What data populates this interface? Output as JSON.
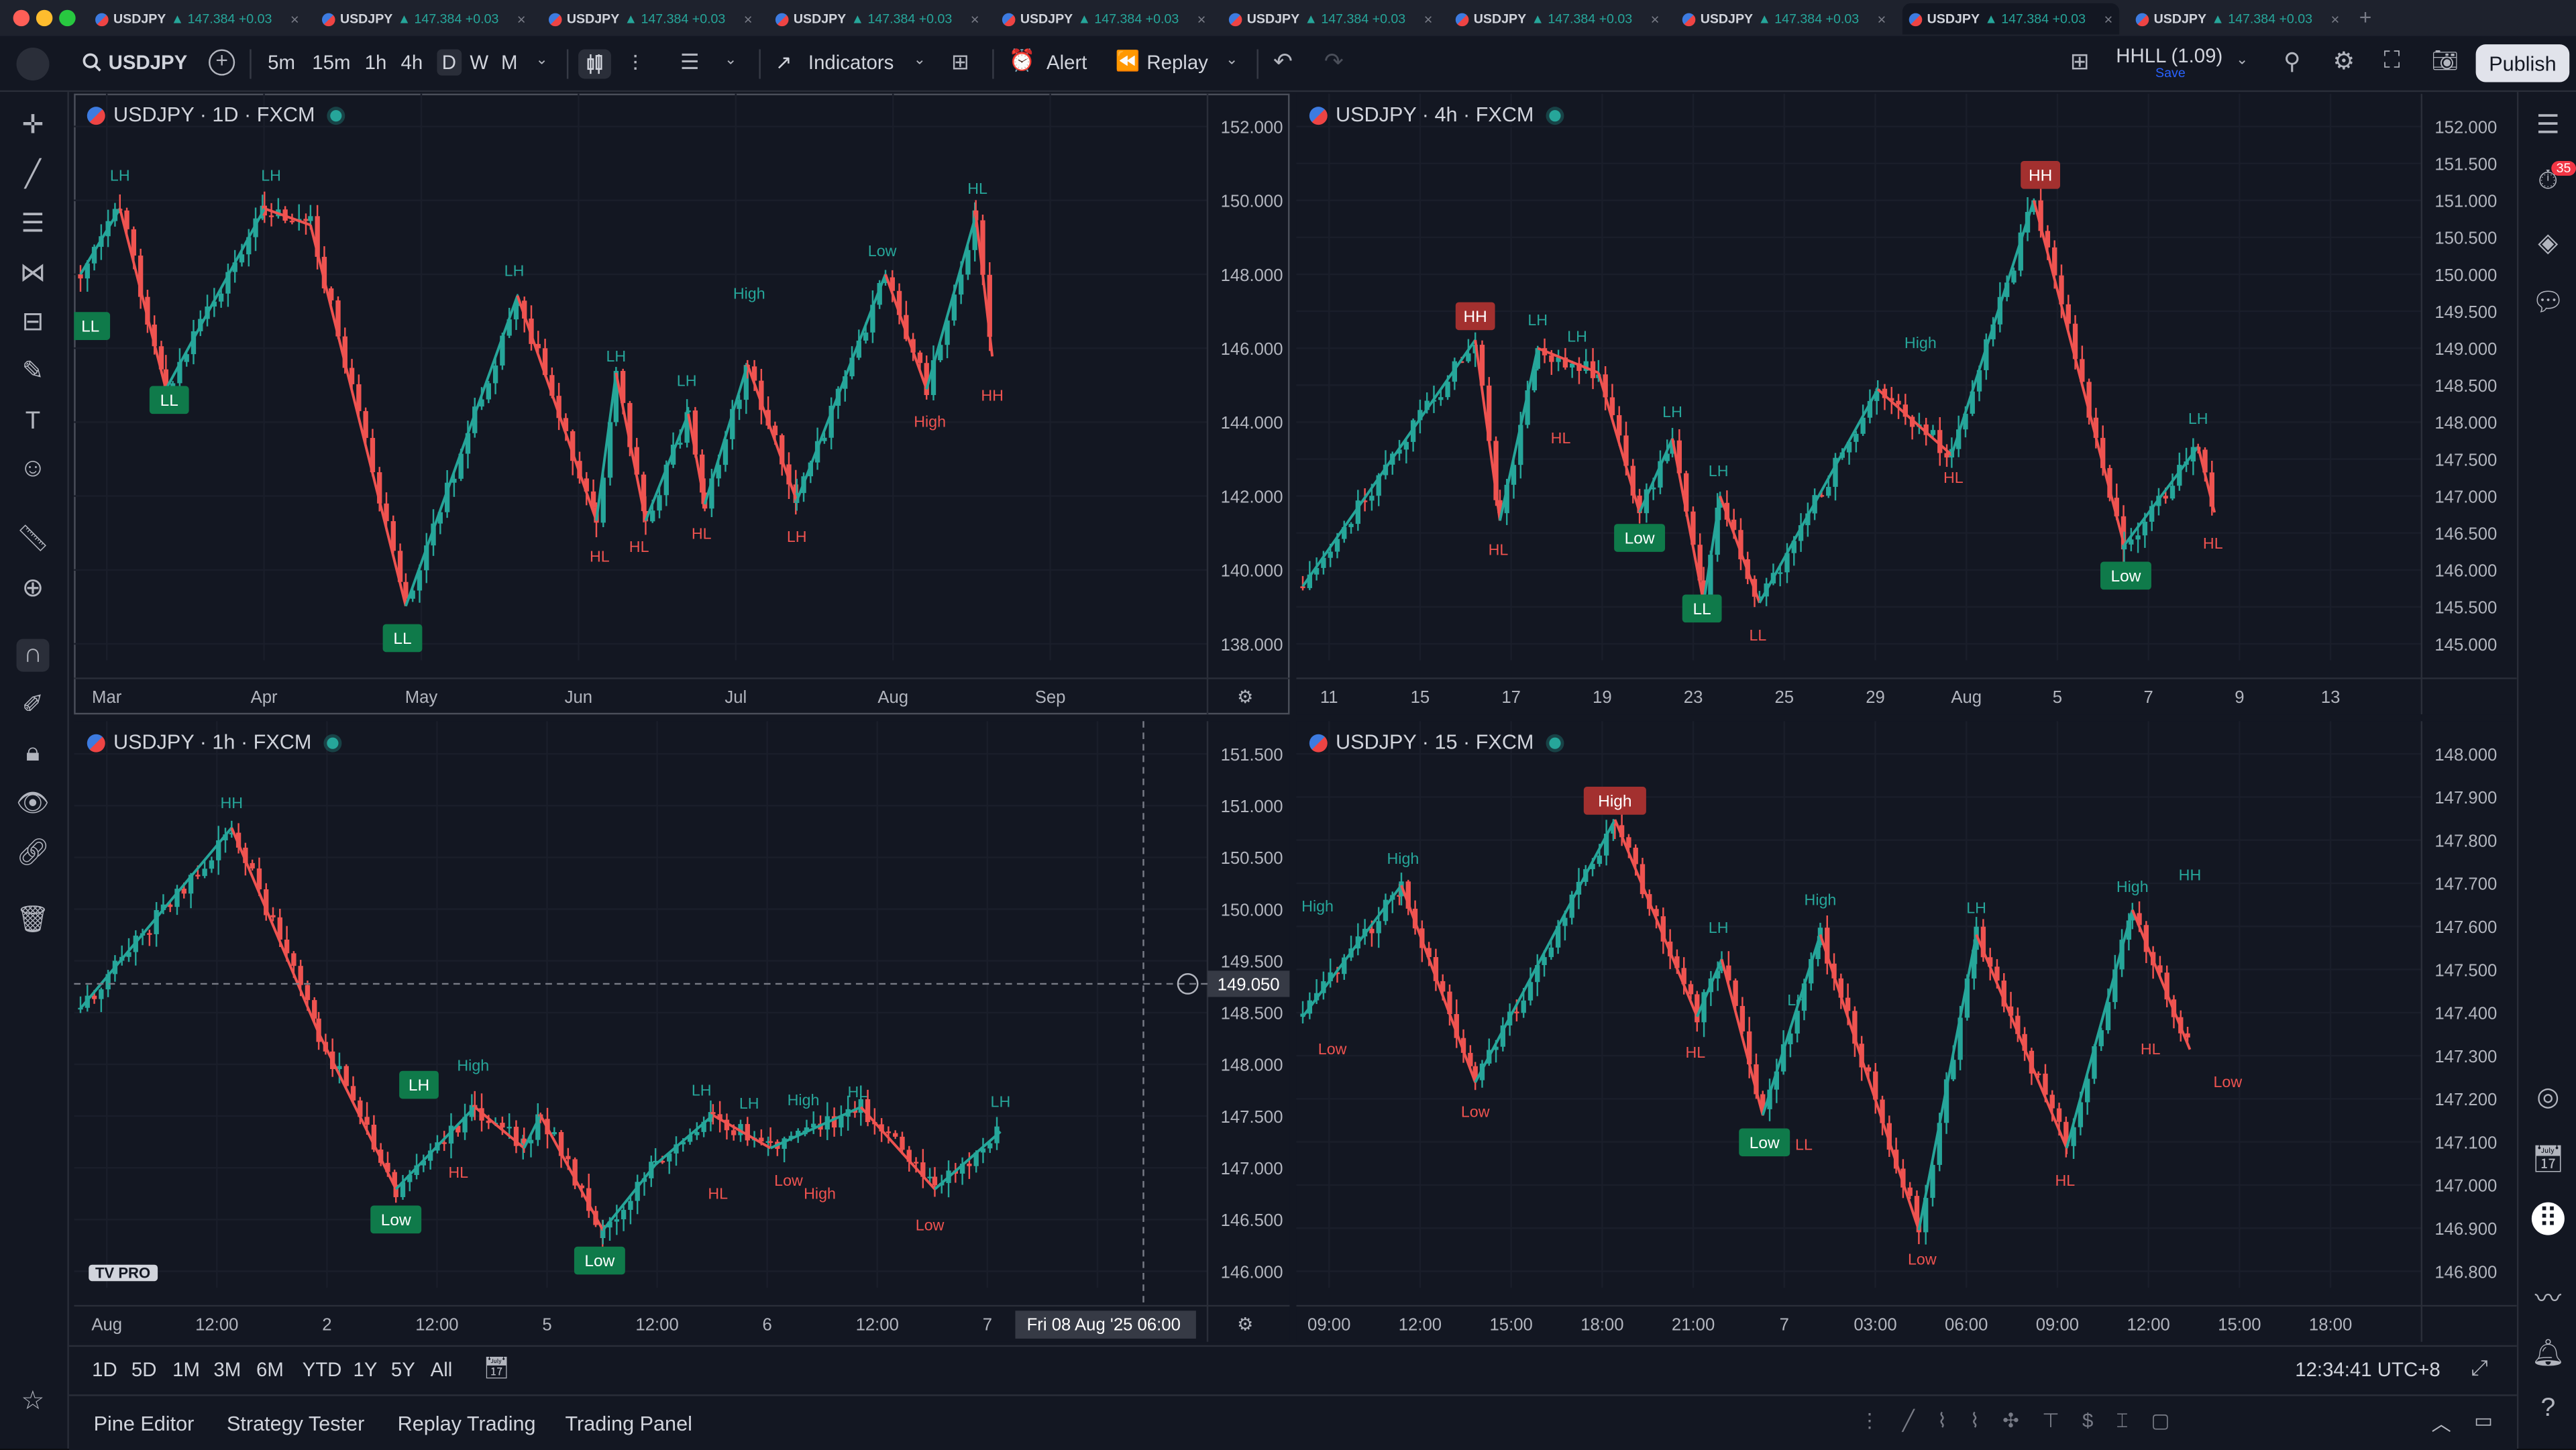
{
  "tabs": [
    {
      "symbol": "USDJPY",
      "change": "▲ 147.384 +0.03"
    },
    {
      "symbol": "USDJPY",
      "change": "▲ 147.384 +0.03"
    },
    {
      "symbol": "USDJPY",
      "change": "▲ 147.384 +0.03"
    },
    {
      "symbol": "USDJPY",
      "change": "▲ 147.384 +0.03"
    },
    {
      "symbol": "USDJPY",
      "change": "▲ 147.384 +0.03"
    },
    {
      "symbol": "USDJPY",
      "change": "▲ 147.384 +0.03"
    },
    {
      "symbol": "USDJPY",
      "change": "▲ 147.384 +0.03"
    },
    {
      "symbol": "USDJPY",
      "change": "▲ 147.384 +0.03"
    },
    {
      "symbol": "USDJPY",
      "change": "▲ 147.384 +0.03"
    },
    {
      "symbol": "USDJPY",
      "change": "▲ 147.384 +0.03"
    }
  ],
  "toolbar": {
    "symbol": "USDJPY",
    "intervals": [
      "5m",
      "15m",
      "1h",
      "4h",
      "D",
      "W",
      "M"
    ],
    "indicators": "Indicators",
    "alert": "Alert",
    "replay": "Replay",
    "layout_name": "HHLL (1.09)",
    "layout_sub": "Save",
    "publish": "Publish"
  },
  "colors": {
    "up": "#26a69a",
    "down": "#ef5350",
    "label_up": "#26a69a",
    "label_down": "#ef5350",
    "bg": "#131722",
    "grid": "#1c2030"
  },
  "panes": [
    {
      "title": "USDJPY · 1D · FXCM",
      "yticks": [
        "152.000",
        "150.000",
        "148.000",
        "146.000",
        "144.000",
        "142.000",
        "140.000",
        "138.000"
      ],
      "xticks": [
        "Mar",
        "Apr",
        "May",
        "Jun",
        "Jul",
        "Aug",
        "Sep"
      ],
      "labels": [
        "LH",
        "LH",
        "LL",
        "LL",
        "LL",
        "LH",
        "LH",
        "LH",
        "HL",
        "HL",
        "HL",
        "LH",
        "High",
        "Low",
        "High",
        "HL",
        "HH",
        "HL"
      ]
    },
    {
      "title": "USDJPY · 4h · FXCM",
      "yticks": [
        "152.000",
        "151.500",
        "151.000",
        "150.500",
        "150.000",
        "149.500",
        "149.000",
        "148.500",
        "148.000",
        "147.500",
        "147.000",
        "146.500",
        "146.000",
        "145.500",
        "145.000"
      ],
      "xticks": [
        "11",
        "15",
        "17",
        "19",
        "23",
        "25",
        "29",
        "Aug",
        "5",
        "7",
        "9",
        "13"
      ],
      "labels": [
        "HH",
        "LH",
        "LH",
        "HL",
        "HL",
        "LH",
        "Low",
        "LH",
        "LL",
        "LL",
        "High",
        "HL",
        "HH",
        "LH",
        "Low",
        "HL"
      ]
    },
    {
      "title": "USDJPY · 1h · FXCM",
      "yticks": [
        "151.500",
        "151.000",
        "150.500",
        "150.000",
        "149.500",
        "148.500",
        "148.000",
        "147.500",
        "147.000",
        "146.500",
        "146.000"
      ],
      "crosshair_price": "149.050",
      "crosshair_time": "Fri 08 Aug '25   06:00",
      "xticks": [
        "Aug",
        "12:00",
        "2",
        "12:00",
        "5",
        "12:00",
        "6",
        "12:00",
        "7",
        "12:0"
      ],
      "labels": [
        "HH",
        "LH",
        "High",
        "Low",
        "HL",
        "Low",
        "LH",
        "LH",
        "High",
        "HL",
        "HL",
        "Low",
        "High",
        "Low",
        "LH"
      ]
    },
    {
      "title": "USDJPY · 15 · FXCM",
      "yticks": [
        "148.000",
        "147.900",
        "147.800",
        "147.700",
        "147.600",
        "147.500",
        "147.400",
        "147.300",
        "147.200",
        "147.100",
        "147.000",
        "146.900",
        "146.800"
      ],
      "xticks": [
        "09:00",
        "12:00",
        "15:00",
        "18:00",
        "21:00",
        "7",
        "03:00",
        "06:00",
        "09:00",
        "12:00",
        "15:00",
        "18:00"
      ],
      "labels": [
        "High",
        "High",
        "Low",
        "Low",
        "High",
        "LH",
        "HL",
        "LH",
        "High",
        "Low",
        "LL",
        "Low",
        "LH",
        "HL",
        "High",
        "HH",
        "HL",
        "Low"
      ]
    }
  ],
  "rangebar": {
    "ranges": [
      "1D",
      "5D",
      "1M",
      "3M",
      "6M",
      "YTD",
      "1Y",
      "5Y",
      "All"
    ],
    "time": "12:34:41 UTC+8"
  },
  "panelbar": {
    "items": [
      "Pine Editor",
      "Strategy Tester",
      "Replay Trading",
      "Trading Panel"
    ]
  },
  "badge_count": "35",
  "watermark": "PRO"
}
